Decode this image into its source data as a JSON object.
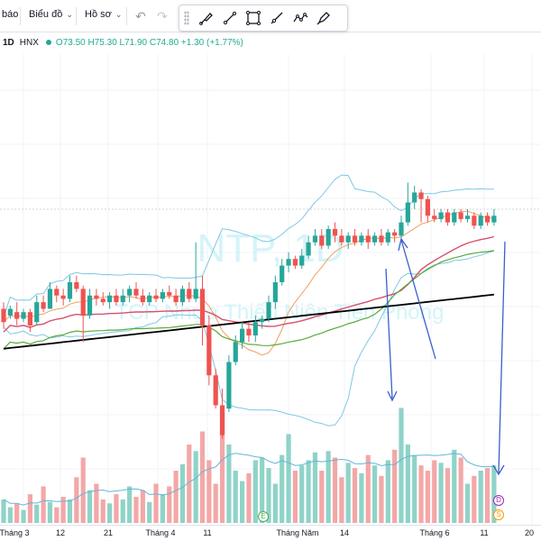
{
  "toolbar": {
    "alerts_label": "báo",
    "chart_label": "Biểu đồ",
    "profile_label": "Hồ sơ",
    "undo_icon": "undo-icon",
    "redo_icon": "redo-icon"
  },
  "drawing_tools": [
    "brush-icon",
    "line-icon",
    "rectangle-icon",
    "ray-icon",
    "path-icon",
    "pen-icon"
  ],
  "legend": {
    "interval": "1D",
    "exchange": "HNX",
    "ohlc": "O73.50 H75.30 L71.90 C74.80 +1.30 (+1.77%)"
  },
  "watermark": {
    "line1": "NTP, 1D",
    "line2": "TCP Nhựa Thiếu Niên Tiền Phong"
  },
  "colors": {
    "up": "#26a69a",
    "down": "#ef5350",
    "volume_up": "#8fd3c8",
    "volume_down": "#f4a7a7",
    "bollinger": "#7ec8e3",
    "ma_orange": "#f0a060",
    "ma_pink": "#d8506c",
    "ma_green": "#5aaa3a",
    "ma_black": "#000000",
    "volume_ma": "#64b5d6",
    "annotation": "#3a5fcd"
  },
  "chart_data": {
    "type": "candlestick",
    "grid": true,
    "x_ticks": [
      "Tháng 3",
      "12",
      "21",
      "Tháng 4",
      "11",
      "Tháng Năm",
      "14",
      "Tháng 6",
      "11",
      "20"
    ],
    "candles": [
      [
        60,
        56,
        62,
        54
      ],
      [
        58,
        60,
        61,
        57
      ],
      [
        59,
        57,
        62,
        55
      ],
      [
        57,
        59,
        60,
        56
      ],
      [
        59,
        55,
        60,
        53
      ],
      [
        56,
        62,
        64,
        55
      ],
      [
        62,
        60,
        64,
        59
      ],
      [
        60,
        66,
        68,
        60
      ],
      [
        66,
        64,
        67,
        62
      ],
      [
        64,
        63,
        66,
        61
      ],
      [
        63,
        68,
        70,
        62
      ],
      [
        68,
        66,
        70,
        65
      ],
      [
        66,
        58,
        67,
        50
      ],
      [
        58,
        64,
        66,
        57
      ],
      [
        64,
        63,
        66,
        61
      ],
      [
        63,
        62,
        65,
        61
      ],
      [
        62,
        64,
        65,
        60
      ],
      [
        64,
        62,
        66,
        61
      ],
      [
        62,
        64,
        66,
        61
      ],
      [
        64,
        66,
        67,
        62
      ],
      [
        66,
        64,
        68,
        63
      ],
      [
        64,
        62,
        66,
        61
      ],
      [
        62,
        64,
        65,
        61
      ],
      [
        64,
        63,
        66,
        62
      ],
      [
        63,
        65,
        66,
        62
      ],
      [
        65,
        64,
        67,
        63
      ],
      [
        64,
        62,
        66,
        61
      ],
      [
        62,
        66,
        67,
        61
      ],
      [
        66,
        63,
        68,
        62
      ],
      [
        63,
        66,
        80,
        62
      ],
      [
        66,
        55,
        70,
        49
      ],
      [
        55,
        40,
        58,
        37
      ],
      [
        40,
        31,
        42,
        30
      ],
      [
        31,
        22,
        36,
        21
      ],
      [
        30,
        44,
        46,
        29
      ],
      [
        44,
        50,
        52,
        43
      ],
      [
        50,
        54,
        56,
        48
      ],
      [
        54,
        52,
        56,
        50
      ],
      [
        52,
        56,
        58,
        50
      ],
      [
        56,
        57,
        58,
        54
      ],
      [
        57,
        62,
        64,
        56
      ],
      [
        62,
        68,
        70,
        60
      ],
      [
        68,
        73,
        75,
        67
      ],
      [
        73,
        75,
        77,
        71
      ],
      [
        75,
        73,
        76,
        72
      ],
      [
        73,
        76,
        78,
        72
      ],
      [
        76,
        80,
        82,
        75
      ],
      [
        80,
        82,
        84,
        79
      ],
      [
        82,
        79,
        84,
        78
      ],
      [
        79,
        84,
        85,
        78
      ],
      [
        84,
        82,
        86,
        80
      ],
      [
        82,
        80,
        84,
        79
      ],
      [
        80,
        82,
        83,
        78
      ],
      [
        82,
        80,
        84,
        79
      ],
      [
        80,
        82,
        83,
        79
      ],
      [
        82,
        80,
        84,
        78
      ],
      [
        80,
        82,
        83,
        79
      ],
      [
        82,
        80,
        84,
        79
      ],
      [
        80,
        83,
        84,
        79
      ],
      [
        83,
        82,
        84,
        80
      ],
      [
        82,
        86,
        88,
        81
      ],
      [
        86,
        92,
        98,
        85
      ],
      [
        92,
        95,
        97,
        90
      ],
      [
        95,
        93,
        96,
        86
      ],
      [
        93,
        88,
        94,
        86
      ],
      [
        88,
        87,
        90,
        86
      ],
      [
        87,
        89,
        90,
        86
      ],
      [
        89,
        86,
        90,
        85
      ],
      [
        86,
        89,
        90,
        85
      ],
      [
        89,
        87,
        90,
        86
      ],
      [
        87,
        88,
        90,
        86
      ],
      [
        88,
        85,
        89,
        84
      ],
      [
        85,
        88,
        89,
        84
      ],
      [
        88,
        86,
        89,
        85
      ],
      [
        86,
        88,
        90,
        85
      ]
    ],
    "volume": [
      18,
      12,
      15,
      10,
      22,
      14,
      28,
      16,
      12,
      20,
      18,
      35,
      50,
      25,
      30,
      18,
      15,
      22,
      18,
      28,
      20,
      25,
      16,
      30,
      22,
      28,
      40,
      45,
      60,
      55,
      70,
      48,
      30,
      85,
      60,
      40,
      32,
      38,
      48,
      50,
      42,
      30,
      52,
      68,
      40,
      44,
      48,
      54,
      40,
      55,
      50,
      35,
      46,
      42,
      38,
      52,
      44,
      36,
      48,
      56,
      88,
      60,
      52,
      44,
      40,
      48,
      46,
      42,
      56,
      50,
      30,
      36,
      40,
      42,
      44
    ],
    "volume_up": [
      true,
      true,
      false,
      true,
      false,
      true,
      false,
      true,
      false,
      false,
      true,
      false,
      false,
      true,
      false,
      false,
      true,
      false,
      true,
      true,
      false,
      false,
      true,
      false,
      true,
      false,
      false,
      true,
      false,
      true,
      false,
      false,
      false,
      false,
      true,
      true,
      true,
      false,
      true,
      true,
      true,
      true,
      true,
      true,
      false,
      true,
      true,
      true,
      false,
      true,
      false,
      false,
      true,
      false,
      true,
      false,
      true,
      false,
      true,
      false,
      true,
      true,
      true,
      false,
      false,
      false,
      true,
      false,
      true,
      false,
      true,
      false,
      true,
      false,
      true
    ]
  }
}
